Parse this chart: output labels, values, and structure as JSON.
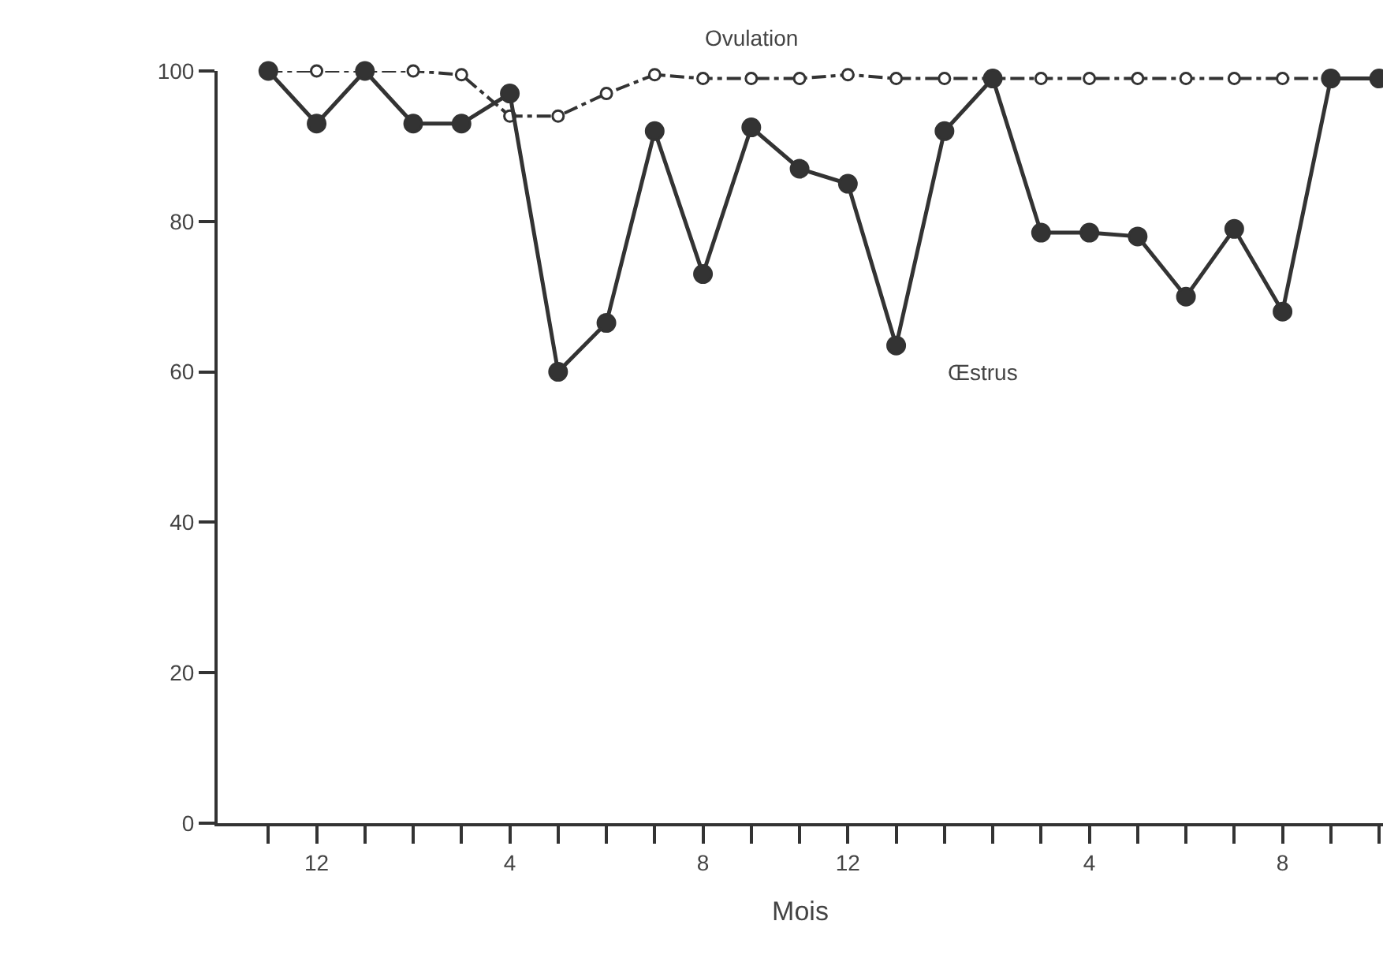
{
  "chart_data": {
    "type": "line",
    "xlabel": "Mois",
    "categories": [
      null,
      "12",
      null,
      null,
      null,
      "4",
      null,
      null,
      null,
      "8",
      null,
      null,
      "12",
      null,
      null,
      null,
      null,
      "4",
      null,
      null,
      null,
      "8",
      null,
      null
    ],
    "series": [
      {
        "name": "Ovulation",
        "color": "#333333",
        "line_style": "dashed",
        "values": [
          100,
          100,
          100,
          100,
          99.5,
          94,
          94,
          97,
          99.5,
          99,
          99,
          99,
          99.5,
          99,
          99,
          99,
          99,
          99,
          99,
          99,
          99,
          99,
          99,
          99
        ]
      },
      {
        "name": "Œstrus",
        "color": "#333333",
        "line_style": "solid",
        "values": [
          100,
          93,
          100,
          93,
          93,
          97,
          60,
          66.5,
          92,
          73,
          92.5,
          87,
          85,
          63.5,
          92,
          99,
          78.5,
          78.5,
          78,
          70,
          79,
          68,
          99,
          99
        ]
      }
    ],
    "ylim": [
      0,
      100
    ],
    "yticks": [
      0,
      20,
      40,
      60,
      80,
      100
    ],
    "grid": false,
    "legend": false,
    "marker": "circle"
  }
}
